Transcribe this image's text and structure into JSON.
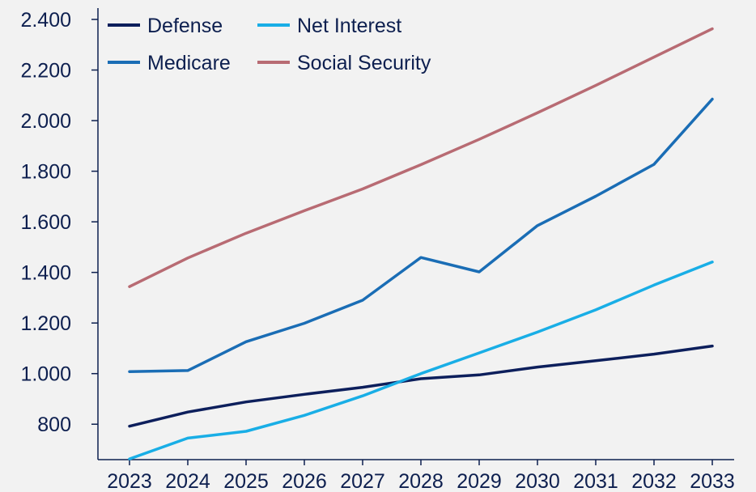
{
  "chart_data": {
    "type": "line",
    "title": "",
    "xlabel": "",
    "ylabel": "",
    "x": [
      "2023",
      "2024",
      "2025",
      "2026",
      "2027",
      "2028",
      "2029",
      "2030",
      "2031",
      "2032",
      "2033"
    ],
    "y_ticks": [
      800,
      1000,
      1200,
      1400,
      1600,
      1800,
      2000,
      2200,
      2400
    ],
    "y_tick_labels": [
      "800",
      "1.000",
      "1.200",
      "1.400",
      "1.600",
      "1.800",
      "2.000",
      "2.200",
      "2.400"
    ],
    "ylim": [
      660,
      2400
    ],
    "grid": false,
    "legend_position": "top-left",
    "series": [
      {
        "name": "Defense",
        "color": "#0d1f5c",
        "values": [
          792,
          848,
          888,
          918,
          946,
          980,
          995,
          1026,
          1051,
          1077,
          1109
        ]
      },
      {
        "name": "Net Interest",
        "color": "#19aee6",
        "values": [
          663,
          745,
          772,
          835,
          912,
          1000,
          1082,
          1164,
          1252,
          1350,
          1441
        ]
      },
      {
        "name": "Medicare",
        "color": "#1a6db5",
        "values": [
          1008,
          1012,
          1126,
          1199,
          1290,
          1459,
          1402,
          1585,
          1701,
          1827,
          2085
        ]
      },
      {
        "name": "Social Security",
        "color": "#b86b73",
        "values": [
          1344,
          1457,
          1555,
          1644,
          1730,
          1826,
          1926,
          2031,
          2139,
          2251,
          2363
        ]
      }
    ],
    "legend_order": [
      0,
      1,
      2,
      3
    ]
  }
}
